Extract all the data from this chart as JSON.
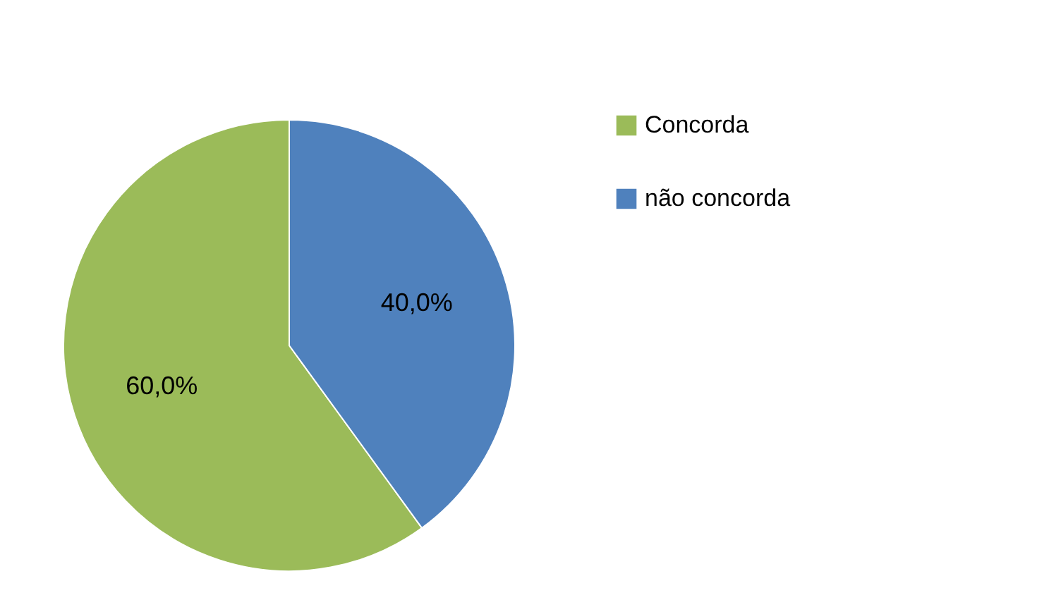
{
  "chart_data": {
    "type": "pie",
    "categories": [
      "Concorda",
      "não concorda"
    ],
    "values": [
      60,
      40
    ],
    "colors": [
      "#9bbb59",
      "#4f81bd"
    ],
    "value_labels": [
      "60,0%",
      "40,0%"
    ],
    "legend": "right"
  }
}
